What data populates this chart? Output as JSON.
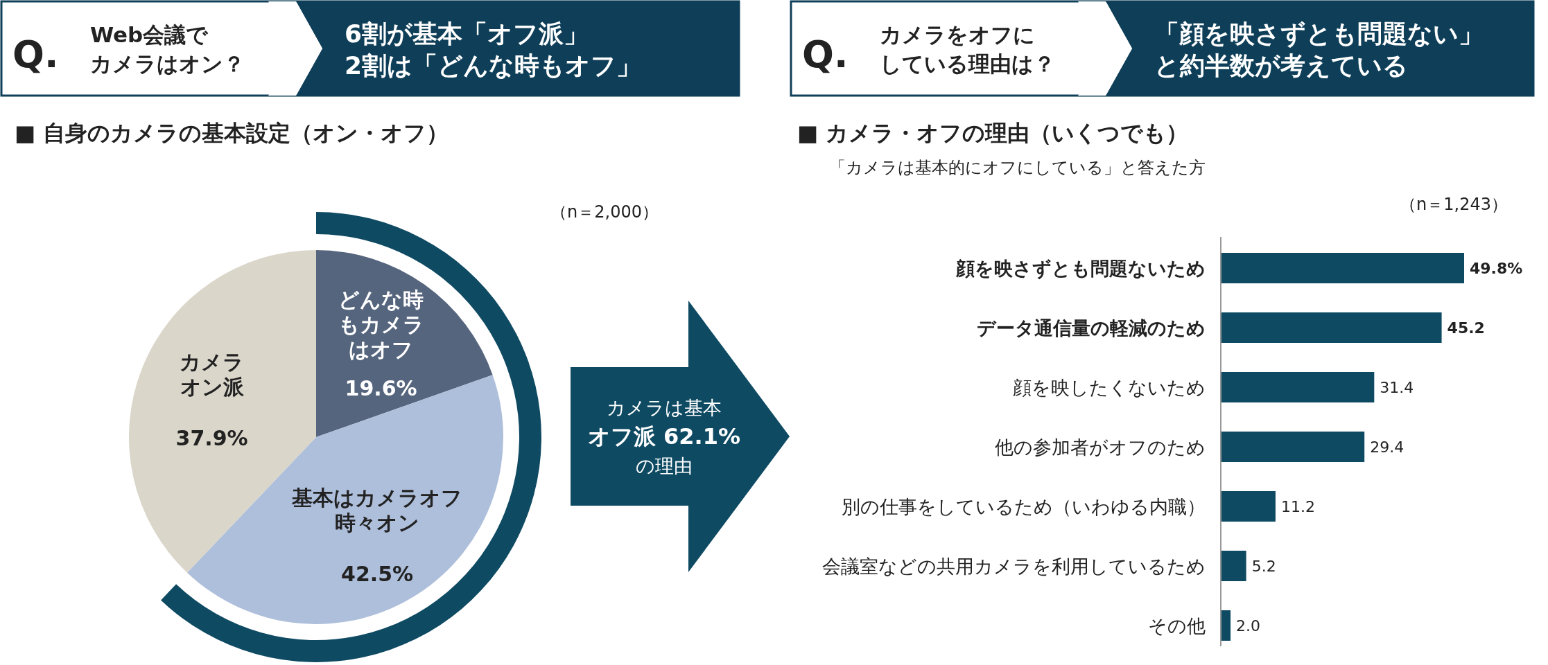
{
  "chart_data": [
    {
      "type": "pie",
      "title": "■ 自身のカメラの基本設定（オン・オフ）",
      "categories": [
        "どんな時もカメラはオフ",
        "基本はカメラオフ時々オン",
        "カメラオン派"
      ],
      "values": [
        19.6,
        42.5,
        37.9
      ],
      "value_labels": [
        "19.6%",
        "42.5%",
        "37.9%"
      ],
      "colors": [
        "#56657e",
        "#aebfdb",
        "#dad6ca"
      ],
      "annotations": [
        "Q.",
        "Web会議で",
        "カメラはオン？",
        "6割が基本「オフ派」",
        "2割は「どんな時もオフ」",
        "（n＝2,000）",
        "カメラは基本",
        "オフ派 62.1%",
        "の理由"
      ]
    },
    {
      "type": "bar",
      "orientation": "horizontal",
      "title": "■ カメラ・オフの理由（いくつでも）",
      "subtitle": "「カメラは基本的にオフにしている」と答えた方",
      "categories": [
        "顔を映さずとも問題ないため",
        "データ通信量の軽減のため",
        "顔を映したくないため",
        "他の参加者がオフのため",
        "別の仕事をしているため（いわゆる内職）",
        "会議室などの共用カメラを利用しているため",
        "その他"
      ],
      "values": [
        49.8,
        45.2,
        31.4,
        29.4,
        11.2,
        5.2,
        2.0
      ],
      "value_labels": [
        "49.8%",
        "45.2",
        "31.4",
        "29.4",
        "11.2",
        "5.2",
        "2.0"
      ],
      "color": "#0f4a63",
      "annotations": [
        "Q.",
        "カメラをオフに",
        "している理由は？",
        "「顔を映さずとも問題ない」",
        "と約半数が考えている",
        "（n＝1,243）"
      ]
    }
  ]
}
